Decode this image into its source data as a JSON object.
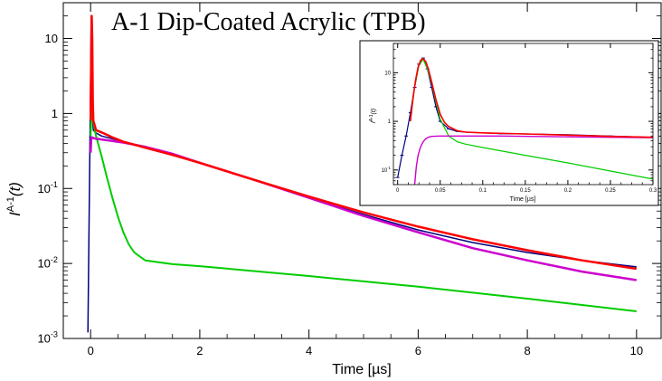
{
  "chart_data": [
    {
      "type": "line",
      "title": "A-1  Dip-Coated Acrylic (TPB)",
      "xlabel": "Time [µs]",
      "ylabel_main": "I",
      "ylabel_sup": "A-1",
      "ylabel_arg": "(t)",
      "xlim": [
        -0.5,
        10.45
      ],
      "ylim": [
        0.001,
        30
      ],
      "yscale": "log",
      "grid": false,
      "x_ticks": [
        0,
        2,
        4,
        6,
        8,
        10
      ],
      "x_tick_labels": [
        "0",
        "2",
        "4",
        "6",
        "8",
        "10"
      ],
      "y_ticks": [
        0.001,
        0.01,
        0.1,
        1,
        10
      ],
      "y_tick_labels": [
        {
          "base": "10",
          "sup": "-3"
        },
        {
          "base": "10",
          "sup": "-2"
        },
        {
          "base": "10",
          "sup": "-1"
        },
        {
          "base": "1",
          "sup": ""
        },
        {
          "base": "10",
          "sup": ""
        }
      ],
      "colors": {
        "data": "#000080",
        "fit": "#ff0000",
        "fast": "#00cc00",
        "slow": "#cc00cc"
      },
      "series": [
        {
          "role": "data",
          "x": [
            -0.05,
            0.0,
            0.01,
            0.02,
            0.03,
            0.05,
            0.1,
            0.2,
            0.4,
            0.6,
            1.0,
            1.5,
            2.0,
            3.0,
            4.0,
            5.0,
            6.0,
            7.0,
            8.0,
            9.0,
            10.0
          ],
          "y": [
            0.0012,
            3.0,
            20.0,
            10.0,
            1.0,
            0.6,
            0.55,
            0.5,
            0.46,
            0.42,
            0.36,
            0.29,
            0.22,
            0.13,
            0.075,
            0.045,
            0.028,
            0.019,
            0.014,
            0.011,
            0.009
          ]
        },
        {
          "role": "fit",
          "x": [
            0.0,
            0.01,
            0.02,
            0.03,
            0.04,
            0.05,
            0.1,
            0.2,
            0.4,
            0.6,
            1.0,
            1.5,
            2.0,
            3.0,
            4.0,
            5.0,
            6.0,
            7.0,
            8.0,
            9.0,
            10.0
          ],
          "y": [
            0.8,
            5.0,
            20.0,
            10.0,
            1.5,
            0.8,
            0.6,
            0.56,
            0.48,
            0.42,
            0.35,
            0.28,
            0.22,
            0.13,
            0.078,
            0.048,
            0.031,
            0.021,
            0.015,
            0.011,
            0.0085
          ]
        },
        {
          "role": "fast",
          "x": [
            0.0,
            0.02,
            0.05,
            0.1,
            0.2,
            0.3,
            0.4,
            0.5,
            0.6,
            0.7,
            0.8,
            1.0,
            1.5,
            2.0,
            4.0,
            6.0,
            8.0,
            10.0
          ],
          "y": [
            0.5,
            1.2,
            0.75,
            0.5,
            0.27,
            0.14,
            0.075,
            0.042,
            0.026,
            0.018,
            0.014,
            0.011,
            0.0098,
            0.0092,
            0.0068,
            0.0049,
            0.0034,
            0.0023
          ]
        },
        {
          "role": "slow",
          "x": [
            0.0,
            0.01,
            0.02,
            0.03,
            0.05,
            0.1,
            0.2,
            0.4,
            0.6,
            1.0,
            1.5,
            2.0,
            3.0,
            4.0,
            5.0,
            6.0,
            7.0,
            8.0,
            9.0,
            10.0
          ],
          "y": [
            0.3,
            0.45,
            0.48,
            0.48,
            0.47,
            0.46,
            0.45,
            0.43,
            0.41,
            0.36,
            0.29,
            0.22,
            0.13,
            0.075,
            0.043,
            0.026,
            0.016,
            0.011,
            0.0078,
            0.006
          ]
        }
      ]
    },
    {
      "type": "line",
      "title": "",
      "xlabel": "Time [µs]",
      "ylabel_main": "I",
      "ylabel_sup": "A-1",
      "ylabel_arg": "(t)",
      "xlim": [
        -0.005,
        0.3
      ],
      "ylim": [
        0.05,
        40
      ],
      "yscale": "log",
      "grid": false,
      "x_ticks": [
        0,
        0.05,
        0.1,
        0.15,
        0.2,
        0.25,
        0.3
      ],
      "x_tick_labels": [
        "0",
        "0.05",
        "0.1",
        "0.15",
        "0.2",
        "0.25",
        "0.3"
      ],
      "y_ticks": [
        0.1,
        1,
        10
      ],
      "y_tick_labels": [
        {
          "base": "10",
          "sup": "-1"
        },
        {
          "base": "1",
          "sup": ""
        },
        {
          "base": "10",
          "sup": ""
        }
      ],
      "colors": {
        "data": "#000080",
        "fit": "#ff0000",
        "fast": "#00cc00",
        "slow": "#cc00cc"
      },
      "series": [
        {
          "role": "data",
          "x": [
            0.0,
            0.005,
            0.01,
            0.015,
            0.02,
            0.025,
            0.03,
            0.035,
            0.04,
            0.045,
            0.05,
            0.06,
            0.07,
            0.08,
            0.1,
            0.12,
            0.15,
            0.2,
            0.25,
            0.3
          ],
          "y": [
            0.07,
            0.2,
            0.5,
            1.5,
            5.0,
            15.0,
            20.0,
            12.0,
            5.0,
            2.0,
            1.0,
            0.7,
            0.62,
            0.6,
            0.58,
            0.56,
            0.55,
            0.53,
            0.5,
            0.47
          ]
        },
        {
          "role": "fit",
          "x": [
            0.015,
            0.018,
            0.021,
            0.024,
            0.027,
            0.03,
            0.033,
            0.036,
            0.04,
            0.045,
            0.05,
            0.055,
            0.06,
            0.07,
            0.08,
            0.1,
            0.15,
            0.2,
            0.25,
            0.3
          ],
          "y": [
            1.0,
            3.0,
            7.0,
            13.0,
            18.0,
            19.5,
            17.0,
            12.0,
            6.5,
            2.8,
            1.4,
            0.95,
            0.78,
            0.64,
            0.6,
            0.58,
            0.55,
            0.52,
            0.49,
            0.47
          ]
        },
        {
          "role": "fast",
          "x": [
            0.015,
            0.02,
            0.025,
            0.03,
            0.035,
            0.04,
            0.045,
            0.05,
            0.06,
            0.07,
            0.08,
            0.1,
            0.15,
            0.2,
            0.25,
            0.3
          ],
          "y": [
            1.0,
            5.0,
            14.0,
            19.0,
            12.0,
            6.0,
            2.5,
            1.1,
            0.5,
            0.38,
            0.34,
            0.29,
            0.2,
            0.14,
            0.095,
            0.065
          ]
        },
        {
          "role": "slow",
          "x": [
            0.02,
            0.022,
            0.024,
            0.027,
            0.03,
            0.033,
            0.036,
            0.04,
            0.05,
            0.08,
            0.12,
            0.2,
            0.3
          ],
          "y": [
            0.05,
            0.12,
            0.2,
            0.3,
            0.38,
            0.44,
            0.47,
            0.49,
            0.5,
            0.5,
            0.5,
            0.48,
            0.46
          ]
        }
      ]
    }
  ]
}
